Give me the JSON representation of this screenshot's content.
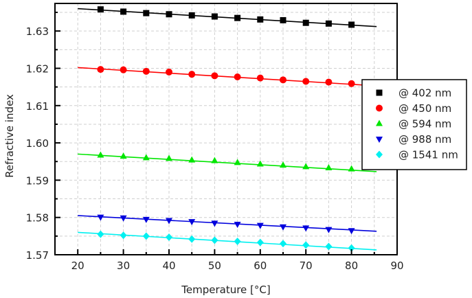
{
  "chart_data": {
    "type": "scatter",
    "title": "",
    "xlabel": "Temperature [°C]",
    "ylabel": "Refractive index",
    "xlim": [
      15,
      90
    ],
    "ylim": [
      1.57,
      1.6374
    ],
    "xticks": [
      20,
      30,
      40,
      50,
      60,
      70,
      80,
      90
    ],
    "xtick_labels": [
      "20",
      "30",
      "40",
      "50",
      "60",
      "70",
      "80",
      "90"
    ],
    "x_minor_step": 5,
    "yticks": [
      1.57,
      1.58,
      1.59,
      1.6,
      1.61,
      1.62,
      1.63
    ],
    "ytick_labels": [
      "1.57",
      "1.58",
      "1.59",
      "1.60",
      "1.61",
      "1.62",
      "1.63"
    ],
    "y_minor_step": 0.005,
    "grid": true,
    "legend_position": "right",
    "x": [
      25,
      30,
      35,
      40,
      45,
      50,
      55,
      60,
      65,
      70,
      75,
      80
    ],
    "series": [
      {
        "name": "@ 402 nm",
        "color": "#000000",
        "marker": "square",
        "values": [
          1.6358,
          1.6352,
          1.6348,
          1.6345,
          1.6342,
          1.6339,
          1.6335,
          1.6331,
          1.6329,
          1.6322,
          1.632,
          1.6317
        ],
        "fit_line": {
          "x": [
            20,
            85.5
          ],
          "y": [
            1.636,
            1.6312
          ]
        }
      },
      {
        "name": "@ 450 nm",
        "color": "#ff0000",
        "marker": "circle",
        "values": [
          1.6197,
          1.6196,
          1.6192,
          1.619,
          1.6184,
          1.618,
          1.6177,
          1.6174,
          1.6169,
          1.6165,
          1.6163,
          1.6159
        ],
        "fit_line": {
          "x": [
            20,
            85.5
          ],
          "y": [
            1.6202,
            1.6153
          ]
        }
      },
      {
        "name": "@ 594 nm",
        "color": "#00e600",
        "marker": "triangle-up",
        "values": [
          1.5967,
          1.5964,
          1.596,
          1.5958,
          1.5954,
          1.5952,
          1.5947,
          1.5943,
          1.594,
          1.5936,
          1.5933,
          1.593
        ],
        "fit_line": {
          "x": [
            20,
            85.5
          ],
          "y": [
            1.597,
            1.5923
          ]
        }
      },
      {
        "name": "@ 988 nm",
        "color": "#0000dd",
        "marker": "triangle-down",
        "values": [
          1.5801,
          1.5799,
          1.5795,
          1.5792,
          1.5789,
          1.5785,
          1.5782,
          1.5779,
          1.5775,
          1.5772,
          1.5768,
          1.5765
        ],
        "fit_line": {
          "x": [
            20,
            85.5
          ],
          "y": [
            1.5805,
            1.5763
          ]
        }
      },
      {
        "name": "@ 1541 nm",
        "color": "#00f0f0",
        "marker": "diamond",
        "values": [
          1.5755,
          1.5752,
          1.575,
          1.5747,
          1.5742,
          1.5739,
          1.5736,
          1.5733,
          1.573,
          1.5726,
          1.5722,
          1.5718
        ],
        "fit_line": {
          "x": [
            20,
            85.5
          ],
          "y": [
            1.576,
            1.5713
          ]
        }
      }
    ]
  }
}
